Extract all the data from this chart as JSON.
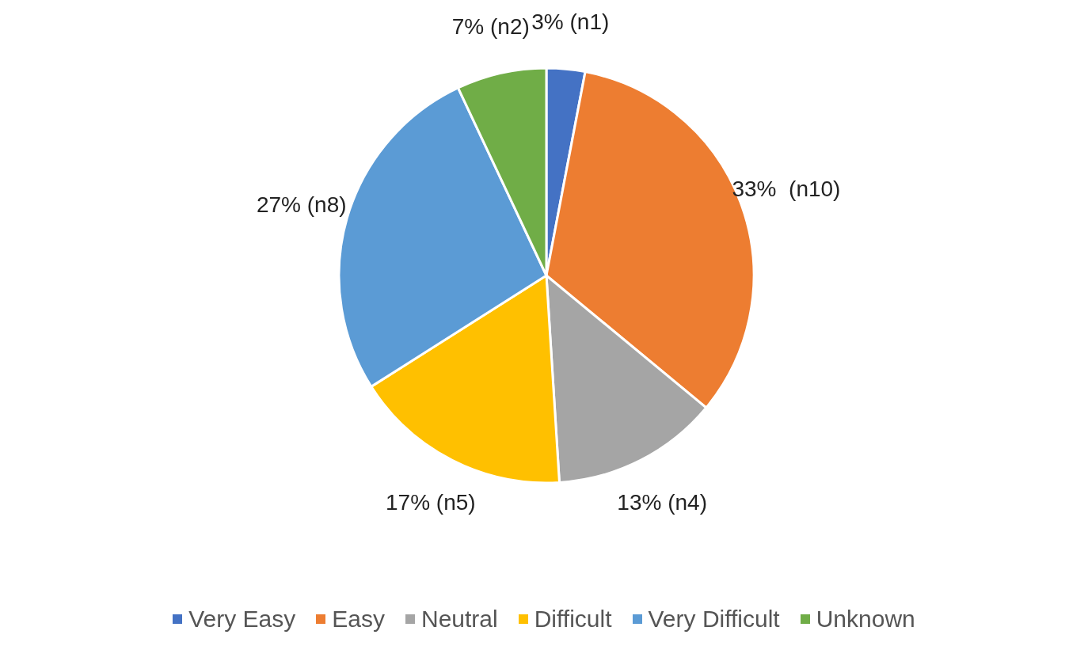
{
  "chart_data": {
    "type": "pie",
    "categories": [
      "Very Easy",
      "Easy",
      "Neutral",
      "Difficult",
      "Very Difficult",
      "Unknown"
    ],
    "values": [
      3,
      33,
      13,
      17,
      27,
      7
    ],
    "colors": [
      "#4472c4",
      "#ed7d31",
      "#a5a5a5",
      "#ffc000",
      "#5b9bd5",
      "#70ad47"
    ],
    "value_labels": [
      "3% (n1)",
      "33%  (n10)",
      "13% (n4)",
      "17% (n5)",
      "27% (n8)",
      "7% (n2)"
    ],
    "legend": "bottom"
  }
}
